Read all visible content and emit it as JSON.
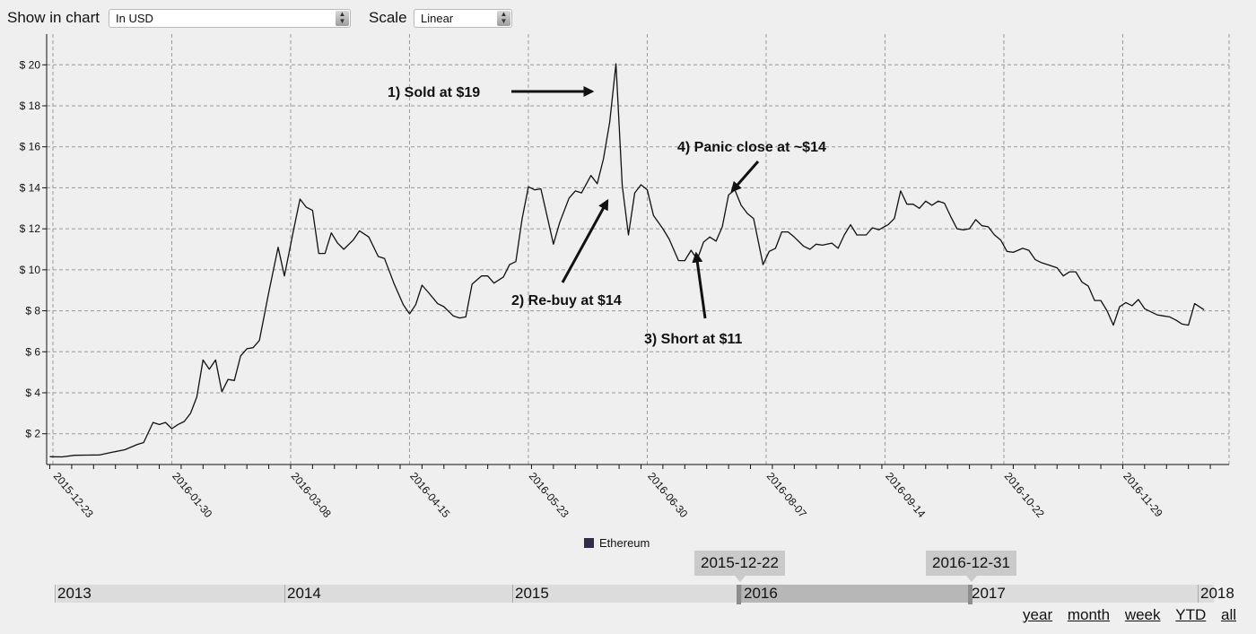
{
  "controls": {
    "show_label": "Show in chart",
    "show_value": "In USD",
    "scale_label": "Scale",
    "scale_value": "Linear"
  },
  "chart_data": {
    "type": "line",
    "title": "",
    "xlabel": "",
    "ylabel": "",
    "ylim": [
      0.5,
      21.5
    ],
    "xlim": [
      "2015-12-21",
      "2017-01-02"
    ],
    "y_ticks": [
      "$ 2",
      "$ 4",
      "$ 6",
      "$ 8",
      "$ 10",
      "$ 12",
      "$ 14",
      "$ 16",
      "$ 18",
      "$ 20"
    ],
    "x_ticks": [
      "2015-12-23",
      "2016-01-30",
      "2016-03-08",
      "2016-04-15",
      "2016-05-23",
      "2016-06-30",
      "2016-08-07",
      "2016-09-14",
      "2016-10-22",
      "2016-11-29"
    ],
    "grid": true,
    "legend_position": "bottom-center",
    "series": [
      {
        "name": "Ethereum",
        "color": "#111111",
        "points": [
          [
            "2015-12-22",
            0.88
          ],
          [
            "2015-12-26",
            0.87
          ],
          [
            "2015-12-30",
            0.95
          ],
          [
            "2016-01-03",
            0.96
          ],
          [
            "2016-01-07",
            0.97
          ],
          [
            "2016-01-11",
            1.1
          ],
          [
            "2016-01-15",
            1.22
          ],
          [
            "2016-01-19",
            1.48
          ],
          [
            "2016-01-21",
            1.57
          ],
          [
            "2016-01-24",
            2.55
          ],
          [
            "2016-01-26",
            2.45
          ],
          [
            "2016-01-28",
            2.55
          ],
          [
            "2016-01-30",
            2.25
          ],
          [
            "2016-02-01",
            2.45
          ],
          [
            "2016-02-03",
            2.6
          ],
          [
            "2016-02-05",
            3.0
          ],
          [
            "2016-02-07",
            3.8
          ],
          [
            "2016-02-09",
            5.6
          ],
          [
            "2016-02-11",
            5.15
          ],
          [
            "2016-02-13",
            5.6
          ],
          [
            "2016-02-15",
            4.05
          ],
          [
            "2016-02-17",
            4.65
          ],
          [
            "2016-02-19",
            4.6
          ],
          [
            "2016-02-21",
            5.8
          ],
          [
            "2016-02-23",
            6.15
          ],
          [
            "2016-02-25",
            6.2
          ],
          [
            "2016-02-27",
            6.55
          ],
          [
            "2016-03-01",
            8.9
          ],
          [
            "2016-03-04",
            11.1
          ],
          [
            "2016-03-06",
            9.7
          ],
          [
            "2016-03-09",
            12.0
          ],
          [
            "2016-03-11",
            13.45
          ],
          [
            "2016-03-13",
            13.05
          ],
          [
            "2016-03-15",
            12.9
          ],
          [
            "2016-03-17",
            10.8
          ],
          [
            "2016-03-19",
            10.8
          ],
          [
            "2016-03-21",
            11.8
          ],
          [
            "2016-03-23",
            11.3
          ],
          [
            "2016-03-25",
            11.0
          ],
          [
            "2016-03-28",
            11.45
          ],
          [
            "2016-03-30",
            11.9
          ],
          [
            "2016-04-02",
            11.6
          ],
          [
            "2016-04-05",
            10.65
          ],
          [
            "2016-04-07",
            10.55
          ],
          [
            "2016-04-10",
            9.35
          ],
          [
            "2016-04-13",
            8.3
          ],
          [
            "2016-04-15",
            7.85
          ],
          [
            "2016-04-17",
            8.3
          ],
          [
            "2016-04-19",
            9.25
          ],
          [
            "2016-04-21",
            8.9
          ],
          [
            "2016-04-24",
            8.35
          ],
          [
            "2016-04-26",
            8.2
          ],
          [
            "2016-04-29",
            7.75
          ],
          [
            "2016-05-01",
            7.65
          ],
          [
            "2016-05-03",
            7.7
          ],
          [
            "2016-05-05",
            9.3
          ],
          [
            "2016-05-08",
            9.7
          ],
          [
            "2016-05-10",
            9.7
          ],
          [
            "2016-05-12",
            9.35
          ],
          [
            "2016-05-15",
            9.65
          ],
          [
            "2016-05-17",
            10.25
          ],
          [
            "2016-05-19",
            10.4
          ],
          [
            "2016-05-21",
            12.5
          ],
          [
            "2016-05-23",
            14.05
          ],
          [
            "2016-05-25",
            13.9
          ],
          [
            "2016-05-27",
            13.95
          ],
          [
            "2016-05-29",
            12.6
          ],
          [
            "2016-05-31",
            11.25
          ],
          [
            "2016-06-02",
            12.3
          ],
          [
            "2016-06-05",
            13.5
          ],
          [
            "2016-06-07",
            13.85
          ],
          [
            "2016-06-09",
            13.75
          ],
          [
            "2016-06-12",
            14.6
          ],
          [
            "2016-06-14",
            14.2
          ],
          [
            "2016-06-16",
            15.4
          ],
          [
            "2016-06-18",
            17.2
          ],
          [
            "2016-06-20",
            20.05
          ],
          [
            "2016-06-22",
            14.1
          ],
          [
            "2016-06-24",
            11.7
          ],
          [
            "2016-06-26",
            13.75
          ],
          [
            "2016-06-28",
            14.15
          ],
          [
            "2016-06-30",
            13.9
          ],
          [
            "2016-07-02",
            12.65
          ],
          [
            "2016-07-05",
            12.0
          ],
          [
            "2016-07-07",
            11.5
          ],
          [
            "2016-07-10",
            10.45
          ],
          [
            "2016-07-12",
            10.45
          ],
          [
            "2016-07-14",
            10.95
          ],
          [
            "2016-07-16",
            10.5
          ],
          [
            "2016-07-18",
            11.35
          ],
          [
            "2016-07-20",
            11.6
          ],
          [
            "2016-07-22",
            11.4
          ],
          [
            "2016-07-24",
            12.1
          ],
          [
            "2016-07-26",
            13.65
          ],
          [
            "2016-07-28",
            13.9
          ],
          [
            "2016-07-30",
            13.15
          ],
          [
            "2016-08-01",
            12.75
          ],
          [
            "2016-08-03",
            12.5
          ],
          [
            "2016-08-06",
            10.25
          ],
          [
            "2016-08-08",
            10.9
          ],
          [
            "2016-08-10",
            11.05
          ],
          [
            "2016-08-12",
            11.85
          ],
          [
            "2016-08-14",
            11.85
          ],
          [
            "2016-08-16",
            11.6
          ],
          [
            "2016-08-19",
            11.15
          ],
          [
            "2016-08-21",
            11.0
          ],
          [
            "2016-08-23",
            11.25
          ],
          [
            "2016-08-25",
            11.2
          ],
          [
            "2016-08-28",
            11.3
          ],
          [
            "2016-08-30",
            11.05
          ],
          [
            "2016-09-01",
            11.7
          ],
          [
            "2016-09-03",
            12.2
          ],
          [
            "2016-09-05",
            11.7
          ],
          [
            "2016-09-08",
            11.7
          ],
          [
            "2016-09-10",
            12.05
          ],
          [
            "2016-09-12",
            11.95
          ],
          [
            "2016-09-15",
            12.2
          ],
          [
            "2016-09-17",
            12.5
          ],
          [
            "2016-09-19",
            13.85
          ],
          [
            "2016-09-21",
            13.2
          ],
          [
            "2016-09-23",
            13.2
          ],
          [
            "2016-09-25",
            13.0
          ],
          [
            "2016-09-27",
            13.35
          ],
          [
            "2016-09-29",
            13.15
          ],
          [
            "2016-10-01",
            13.35
          ],
          [
            "2016-10-03",
            13.25
          ],
          [
            "2016-10-05",
            12.6
          ],
          [
            "2016-10-07",
            12.0
          ],
          [
            "2016-10-09",
            11.95
          ],
          [
            "2016-10-11",
            12.0
          ],
          [
            "2016-10-13",
            12.45
          ],
          [
            "2016-10-15",
            12.15
          ],
          [
            "2016-10-17",
            12.1
          ],
          [
            "2016-10-19",
            11.7
          ],
          [
            "2016-10-21",
            11.45
          ],
          [
            "2016-10-23",
            10.9
          ],
          [
            "2016-10-25",
            10.85
          ],
          [
            "2016-10-28",
            11.05
          ],
          [
            "2016-10-30",
            10.95
          ],
          [
            "2016-11-01",
            10.5
          ],
          [
            "2016-11-03",
            10.35
          ],
          [
            "2016-11-05",
            10.25
          ],
          [
            "2016-11-08",
            10.1
          ],
          [
            "2016-11-10",
            9.7
          ],
          [
            "2016-11-12",
            9.9
          ],
          [
            "2016-11-14",
            9.9
          ],
          [
            "2016-11-16",
            9.4
          ],
          [
            "2016-11-18",
            9.2
          ],
          [
            "2016-11-20",
            8.5
          ],
          [
            "2016-11-22",
            8.5
          ],
          [
            "2016-11-24",
            8.0
          ],
          [
            "2016-11-26",
            7.3
          ],
          [
            "2016-11-28",
            8.2
          ],
          [
            "2016-11-30",
            8.4
          ],
          [
            "2016-12-02",
            8.25
          ],
          [
            "2016-12-04",
            8.55
          ],
          [
            "2016-12-06",
            8.1
          ],
          [
            "2016-12-08",
            7.95
          ],
          [
            "2016-12-10",
            7.8
          ],
          [
            "2016-12-12",
            7.75
          ],
          [
            "2016-12-14",
            7.7
          ],
          [
            "2016-12-16",
            7.55
          ],
          [
            "2016-12-18",
            7.35
          ],
          [
            "2016-12-20",
            7.3
          ],
          [
            "2016-12-22",
            8.35
          ],
          [
            "2016-12-25",
            8.05
          ]
        ]
      }
    ],
    "annotations": [
      {
        "text": "1) Sold at  $19",
        "target": [
          "2016-06-20",
          20.05
        ]
      },
      {
        "text": "2) Re-buy at $14",
        "target": [
          "2016-06-22",
          14.0
        ]
      },
      {
        "text": "3) Short at $11",
        "target": [
          "2016-07-18",
          11.3
        ]
      },
      {
        "text": "4) Panic close at ~$14",
        "target": [
          "2016-07-28",
          13.9
        ]
      }
    ]
  },
  "navigator": {
    "years": [
      "2013",
      "2014",
      "2015",
      "2016",
      "2017",
      "2018"
    ],
    "start_label": "2015-12-22",
    "end_label": "2016-12-31"
  },
  "range_links": [
    "year",
    "month",
    "week",
    "YTD",
    "all"
  ]
}
